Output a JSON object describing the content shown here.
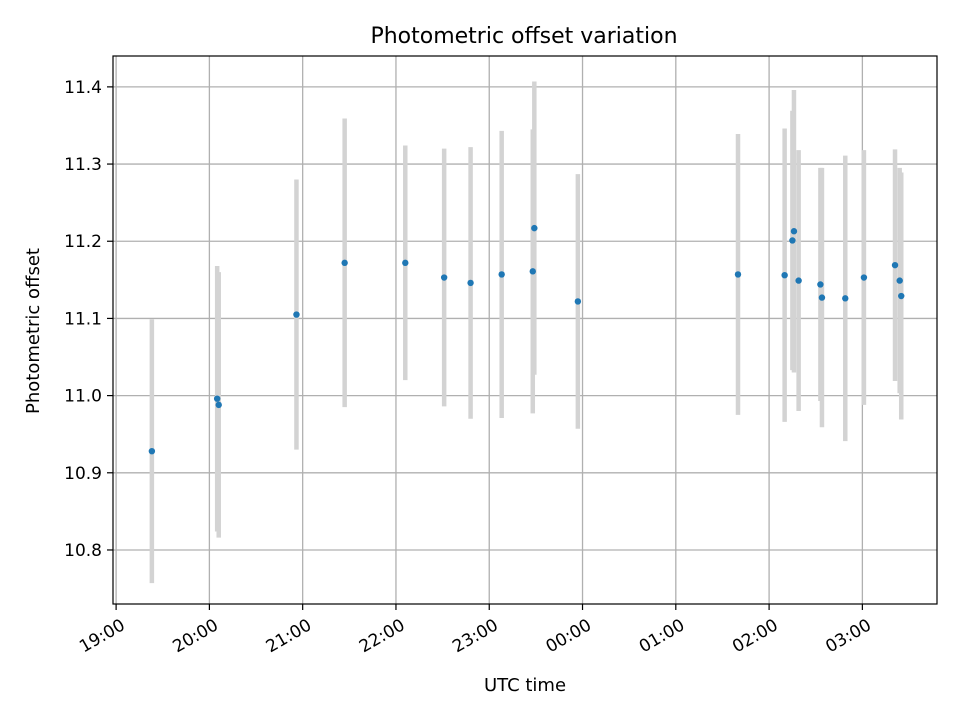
{
  "chart_data": {
    "type": "scatter",
    "title": "Photometric offset variation",
    "xlabel": "UTC time",
    "ylabel": "Photometric offset",
    "x_ticks": [
      "19:00",
      "20:00",
      "21:00",
      "22:00",
      "23:00",
      "00:00",
      "01:00",
      "02:00",
      "03:00"
    ],
    "y_ticks": [
      "10.8",
      "10.9",
      "11.0",
      "11.1",
      "11.2",
      "11.3",
      "11.4"
    ],
    "xlim": [
      "18:58",
      "03:48"
    ],
    "ylim": [
      10.73,
      11.44
    ],
    "grid": true,
    "legend": "none",
    "series": [
      {
        "points": [
          {
            "time": "19:23",
            "y": 10.928,
            "err": 0.171
          },
          {
            "time": "20:05",
            "y": 10.996,
            "err": 0.172
          },
          {
            "time": "20:06",
            "y": 10.988,
            "err": 0.172
          },
          {
            "time": "20:56",
            "y": 11.105,
            "err": 0.175
          },
          {
            "time": "21:27",
            "y": 11.172,
            "err": 0.187
          },
          {
            "time": "22:06",
            "y": 11.172,
            "err": 0.152
          },
          {
            "time": "22:31",
            "y": 11.153,
            "err": 0.167
          },
          {
            "time": "22:48",
            "y": 11.146,
            "err": 0.176
          },
          {
            "time": "23:08",
            "y": 11.157,
            "err": 0.186
          },
          {
            "time": "23:28",
            "y": 11.161,
            "err": 0.184
          },
          {
            "time": "23:29",
            "y": 11.217,
            "err": 0.19
          },
          {
            "time": "23:57",
            "y": 11.122,
            "err": 0.165
          },
          {
            "time": "01:40",
            "y": 11.157,
            "err": 0.182
          },
          {
            "time": "02:10",
            "y": 11.156,
            "err": 0.19
          },
          {
            "time": "02:15",
            "y": 11.201,
            "err": 0.168
          },
          {
            "time": "02:16",
            "y": 11.213,
            "err": 0.183
          },
          {
            "time": "02:19",
            "y": 11.149,
            "err": 0.169
          },
          {
            "time": "02:33",
            "y": 11.144,
            "err": 0.151
          },
          {
            "time": "02:34",
            "y": 11.127,
            "err": 0.168
          },
          {
            "time": "02:49",
            "y": 11.126,
            "err": 0.185
          },
          {
            "time": "03:01",
            "y": 11.153,
            "err": 0.165
          },
          {
            "time": "03:21",
            "y": 11.169,
            "err": 0.15
          },
          {
            "time": "03:24",
            "y": 11.149,
            "err": 0.146
          },
          {
            "time": "03:25",
            "y": 11.129,
            "err": 0.16
          }
        ]
      }
    ],
    "colors": {
      "marker": "#1f77b4",
      "errorbar": "#d3d3d3",
      "grid": "#b0b0b0",
      "axes": "#000000"
    }
  }
}
